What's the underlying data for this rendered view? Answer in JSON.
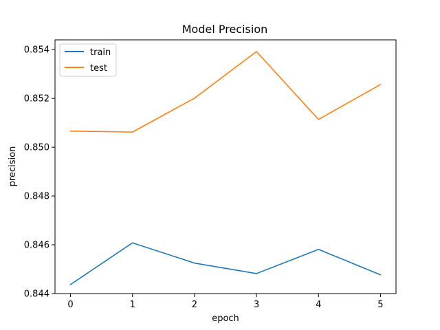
{
  "chart_data": {
    "type": "line",
    "title": "Model Precision",
    "xlabel": "epoch",
    "ylabel": "precision",
    "x": [
      0,
      1,
      2,
      3,
      4,
      5
    ],
    "xticks": [
      "0",
      "1",
      "2",
      "3",
      "4",
      "5"
    ],
    "xlim": [
      -0.25,
      5.25
    ],
    "ylim": [
      0.844,
      0.8544
    ],
    "yticks": [
      "0.844",
      "0.846",
      "0.848",
      "0.850",
      "0.852",
      "0.854"
    ],
    "yticks_values": [
      0.844,
      0.846,
      0.848,
      0.85,
      0.852,
      0.854
    ],
    "grid": false,
    "legend_position": "upper-left",
    "series": [
      {
        "name": "train",
        "color": "#1f77b4",
        "values": [
          0.84437,
          0.84608,
          0.84525,
          0.84482,
          0.84581,
          0.84477
        ]
      },
      {
        "name": "test",
        "color": "#ff7f0e",
        "values": [
          0.85066,
          0.85062,
          0.85201,
          0.85392,
          0.85114,
          0.85257
        ]
      }
    ]
  }
}
